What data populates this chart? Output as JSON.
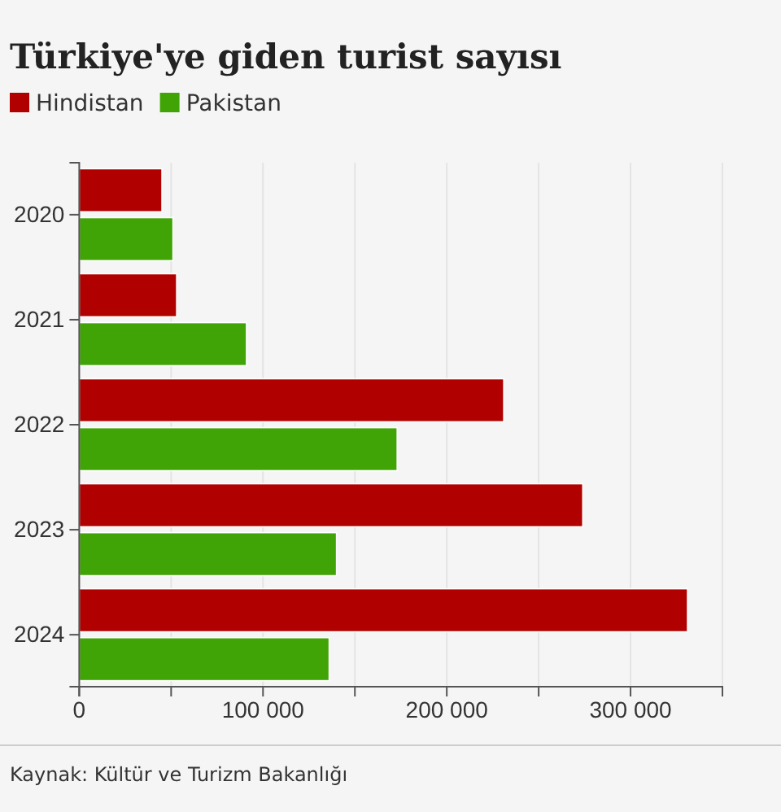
{
  "chart_data": {
    "type": "bar",
    "orientation": "horizontal",
    "title": "Türkiye'ye giden turist sayısı",
    "categories": [
      "2020",
      "2021",
      "2022",
      "2023",
      "2024"
    ],
    "series": [
      {
        "name": "Hindistan",
        "color": "#b00000",
        "values": [
          45000,
          53000,
          231000,
          274000,
          331000
        ]
      },
      {
        "name": "Pakistan",
        "color": "#41a406",
        "values": [
          51000,
          91000,
          173000,
          140000,
          136000
        ]
      }
    ],
    "xlim": [
      0,
      350000
    ],
    "xticks": [
      0,
      {
        "value": 50000,
        "label": null
      },
      {
        "value": 100000,
        "label": "100 000"
      },
      {
        "value": 150000,
        "label": null
      },
      {
        "value": 200000,
        "label": "200 000"
      },
      {
        "value": 250000,
        "label": null
      },
      {
        "value": 300000,
        "label": "300 000"
      },
      {
        "value": 350000,
        "label": null
      }
    ],
    "grid": "x",
    "legend": "top left",
    "annotations": [
      "Kaynak: Kültür ve Turizm Bakanlığı"
    ]
  }
}
